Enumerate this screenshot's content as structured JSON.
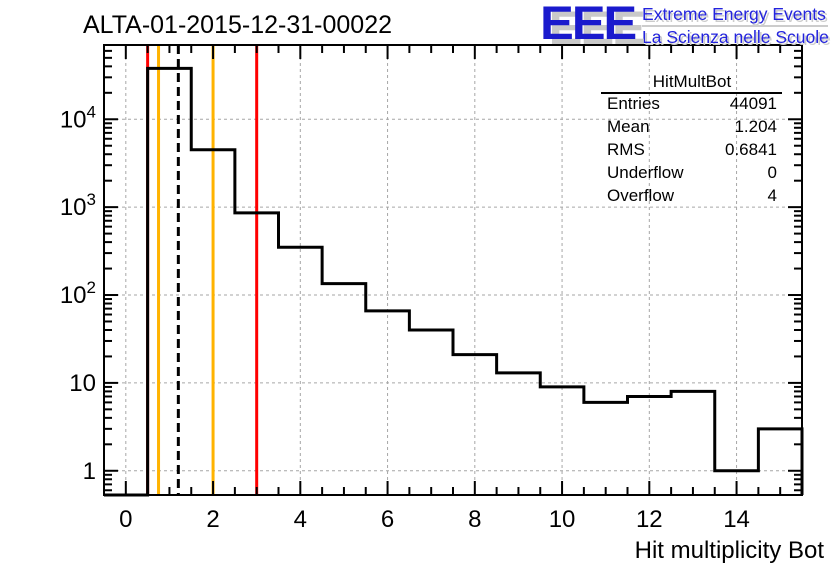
{
  "title": "ALTA-01-2015-12-31-00022",
  "logo": {
    "acronym": "EEE",
    "line1": "Extreme Energy Events",
    "line2": "La Scienza nelle Scuole",
    "color": "#1a1acd",
    "shadow_color": "#c9c9c9"
  },
  "stats": {
    "header": "HitMultBot",
    "rows": [
      {
        "label": "Entries",
        "value": "44091"
      },
      {
        "label": "Mean",
        "value": "1.204"
      },
      {
        "label": "RMS",
        "value": "0.6841"
      },
      {
        "label": "Underflow",
        "value": "0"
      },
      {
        "label": "Overflow",
        "value": "4"
      }
    ]
  },
  "chart_data": {
    "type": "bar",
    "subtype": "step_histogram",
    "title": "ALTA-01-2015-12-31-00022",
    "xlabel": "Hit multiplicity Bot",
    "ylabel": "",
    "yscale": "log",
    "grid": true,
    "legend": "none",
    "xlim": [
      -0.5,
      15.5
    ],
    "ylim": [
      0.53,
      70000
    ],
    "bin_width": 1,
    "categories": [
      0,
      1,
      2,
      3,
      4,
      5,
      6,
      7,
      8,
      9,
      10,
      11,
      12,
      13,
      14,
      15
    ],
    "values": [
      0,
      38000,
      4500,
      860,
      350,
      135,
      66,
      40,
      21,
      13,
      9,
      6,
      7,
      8,
      1,
      3
    ],
    "x_major_ticks": [
      0,
      2,
      4,
      6,
      8,
      10,
      12,
      14
    ],
    "x_minor_step": 0.5,
    "y_major_ticks": [
      1,
      10,
      100,
      1000,
      10000
    ],
    "line_color": "#000000",
    "grid_color": "#a6a6a6",
    "reference_lines": [
      {
        "name": "error-low",
        "x": 0.5,
        "color": "#ff0000",
        "style": "solid"
      },
      {
        "name": "warn-low",
        "x": 0.75,
        "color": "#ffb300",
        "style": "solid"
      },
      {
        "name": "mean",
        "x": 1.204,
        "color": "#000000",
        "style": "dashed"
      },
      {
        "name": "warn-high",
        "x": 2.0,
        "color": "#ffb300",
        "style": "solid"
      },
      {
        "name": "error-high",
        "x": 3.0,
        "color": "#ff0000",
        "style": "solid"
      }
    ]
  }
}
